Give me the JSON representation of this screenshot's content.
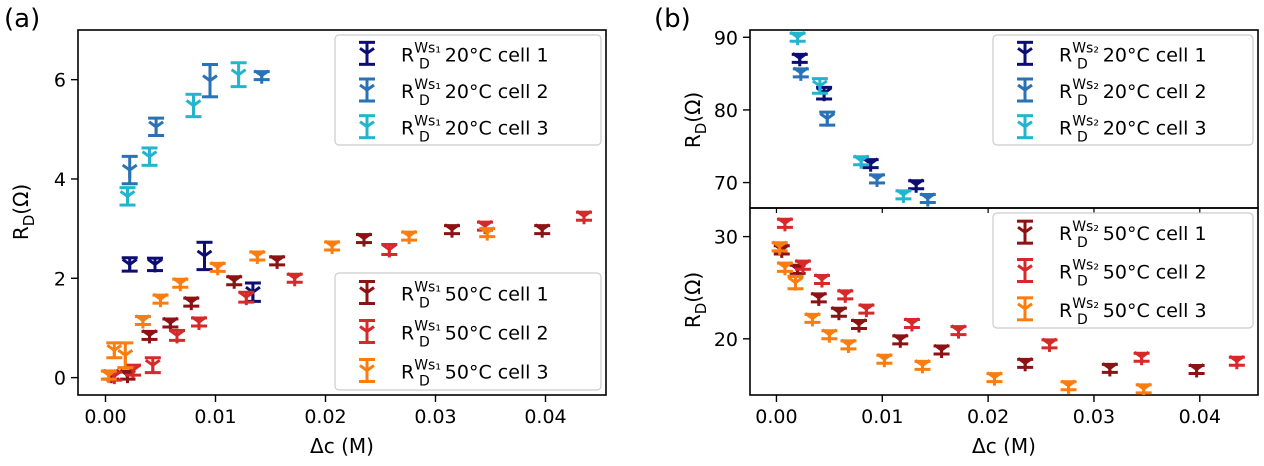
{
  "figure": {
    "panel_a_label": "(a)",
    "panel_b_label": "(b)"
  },
  "chart_data": [
    {
      "panel": "(a)",
      "type": "scatter",
      "xlabel": "Δc (M)",
      "ylabel_main": "R",
      "ylabel_sub": "D",
      "ylabel_rest": "(Ω)",
      "xlim": [
        -0.0025,
        0.0455
      ],
      "ylim": [
        -0.35,
        7.0
      ],
      "xticks": [
        0.0,
        0.01,
        0.02,
        0.03,
        0.04
      ],
      "xtick_labels": [
        "0.00",
        "0.01",
        "0.02",
        "0.03",
        "0.04"
      ],
      "yticks": [
        0,
        2,
        4,
        6
      ],
      "ytick_labels": [
        "0",
        "2",
        "4",
        "6"
      ],
      "grid": false,
      "legends": [
        {
          "placement": "upper-right",
          "entries": [
            0,
            1,
            2
          ]
        },
        {
          "placement": "lower-right",
          "entries": [
            3,
            4,
            5
          ]
        }
      ],
      "series": [
        {
          "name": "R_D^{Ws1} 20°C cell 1",
          "name_main": "R",
          "name_sub": "D",
          "name_sup": "Ws₁",
          "name_rest": "20°C cell 1",
          "color": "#0d0d73",
          "points": [
            [
              0.0022,
              2.28,
              0.27
            ],
            [
              0.0045,
              2.28,
              0.25
            ],
            [
              0.009,
              2.45,
              0.55
            ],
            [
              0.0134,
              1.72,
              0.37
            ]
          ]
        },
        {
          "name": "R_D^{Ws1} 20°C cell 2",
          "name_main": "R",
          "name_sub": "D",
          "name_sup": "Ws₁",
          "name_rest": "20°C cell 2",
          "color": "#2872b5",
          "points": [
            [
              0.0022,
              4.18,
              0.55
            ],
            [
              0.0046,
              5.05,
              0.35
            ],
            [
              0.0095,
              5.98,
              0.65
            ],
            [
              0.0142,
              6.08,
              0.1
            ]
          ]
        },
        {
          "name": "R_D^{Ws1} 20°C cell 3",
          "name_main": "R",
          "name_sub": "D",
          "name_sup": "Ws₁",
          "name_rest": "20°C cell 3",
          "color": "#22b5cd",
          "points": [
            [
              0.002,
              3.65,
              0.35
            ],
            [
              0.004,
              4.45,
              0.35
            ],
            [
              0.008,
              5.48,
              0.45
            ],
            [
              0.0121,
              6.1,
              0.48
            ]
          ]
        },
        {
          "name": "R_D^{Ws1} 50°C cell 1",
          "name_main": "R",
          "name_sub": "D",
          "name_sup": "Ws₁",
          "name_rest": "50°C cell 1",
          "color": "#8c1214",
          "points": [
            [
              0.0005,
              0.05,
              0.1
            ],
            [
              0.002,
              0.05,
              0.15
            ],
            [
              0.004,
              0.85,
              0.1
            ],
            [
              0.0059,
              1.1,
              0.1
            ],
            [
              0.0078,
              1.52,
              0.1
            ],
            [
              0.0117,
              1.95,
              0.1
            ],
            [
              0.0156,
              2.35,
              0.1
            ],
            [
              0.0235,
              2.8,
              0.15
            ],
            [
              0.0315,
              2.98,
              0.15
            ],
            [
              0.0397,
              2.98,
              0.15
            ]
          ]
        },
        {
          "name": "R_D^{Ws1} 50°C cell 2",
          "name_main": "R",
          "name_sub": "D",
          "name_sup": "Ws₁",
          "name_rest": "50°C cell 2",
          "color": "#d7282a",
          "points": [
            [
              0.0008,
              0.03,
              0.1
            ],
            [
              0.0025,
              0.15,
              0.2
            ],
            [
              0.0043,
              0.25,
              0.3
            ],
            [
              0.0065,
              0.85,
              0.2
            ],
            [
              0.0085,
              1.12,
              0.1
            ],
            [
              0.0128,
              1.62,
              0.2
            ],
            [
              0.0172,
              2.0,
              0.1
            ],
            [
              0.0258,
              2.58,
              0.2
            ],
            [
              0.0345,
              3.05,
              0.1
            ],
            [
              0.0435,
              3.25,
              0.15
            ]
          ]
        },
        {
          "name": "R_D^{Ws1} 50°C cell 3",
          "name_main": "R",
          "name_sub": "D",
          "name_sup": "Ws₁",
          "name_rest": "50°C cell 3",
          "color": "#fa7d0f",
          "points": [
            [
              0.0003,
              0.05,
              0.1
            ],
            [
              0.0008,
              0.55,
              0.3
            ],
            [
              0.0018,
              0.45,
              0.5
            ],
            [
              0.0034,
              1.15,
              0.1
            ],
            [
              0.005,
              1.58,
              0.15
            ],
            [
              0.0068,
              1.9,
              0.1
            ],
            [
              0.0102,
              2.22,
              0.1
            ],
            [
              0.0138,
              2.45,
              0.1
            ],
            [
              0.0206,
              2.65,
              0.1
            ],
            [
              0.0276,
              2.85,
              0.1
            ],
            [
              0.0347,
              2.92,
              0.15
            ]
          ]
        }
      ]
    },
    {
      "panel": "(b) upper",
      "type": "scatter",
      "xlabel": "",
      "ylabel_main": "R",
      "ylabel_sub": "D",
      "ylabel_rest": "(Ω)",
      "xlim": [
        -0.0025,
        0.0455
      ],
      "ylim": [
        66.5,
        91.0
      ],
      "yticks": [
        70,
        80,
        90
      ],
      "ytick_labels": [
        "70",
        "80",
        "90"
      ],
      "grid": false,
      "legends": [
        {
          "placement": "upper-right",
          "entries": [
            0,
            1,
            2
          ]
        }
      ],
      "series": [
        {
          "name": "R_D^{Ws2} 20°C cell 1",
          "name_main": "R",
          "name_sub": "D",
          "name_sup": "Ws₂",
          "name_rest": "20°C cell 1",
          "color": "#0d0d73",
          "points": [
            [
              0.0022,
              87.1,
              0.9
            ],
            [
              0.0045,
              82.3,
              1.6
            ],
            [
              0.0089,
              72.6,
              0.8
            ],
            [
              0.0132,
              69.7,
              0.6
            ]
          ]
        },
        {
          "name": "R_D^{Ws2} 20°C cell 2",
          "name_main": "R",
          "name_sub": "D",
          "name_sup": "Ws₂",
          "name_rest": "20°C cell 2",
          "color": "#2872b5",
          "points": [
            [
              0.0023,
              85.1,
              0.9
            ],
            [
              0.0048,
              78.8,
              1.8
            ],
            [
              0.0095,
              70.5,
              0.8
            ],
            [
              0.0143,
              67.8,
              0.6
            ]
          ]
        },
        {
          "name": "R_D^{Ws2} 20°C cell 3",
          "name_main": "R",
          "name_sub": "D",
          "name_sup": "Ws₂",
          "name_rest": "20°C cell 3",
          "color": "#22b5cd",
          "points": [
            [
              0.002,
              90.0,
              0.8
            ],
            [
              0.0041,
              83.3,
              2.0
            ],
            [
              0.008,
              73.0,
              0.6
            ],
            [
              0.012,
              68.3,
              0.7
            ]
          ]
        }
      ]
    },
    {
      "panel": "(b) lower",
      "type": "scatter",
      "xlabel": "Δc (M)",
      "ylabel_main": "R",
      "ylabel_sub": "D",
      "ylabel_rest": "(Ω)",
      "xlim": [
        -0.0025,
        0.0455
      ],
      "ylim": [
        14.5,
        32.8
      ],
      "xticks": [
        0.0,
        0.01,
        0.02,
        0.03,
        0.04
      ],
      "xtick_labels": [
        "0.00",
        "0.01",
        "0.02",
        "0.03",
        "0.04"
      ],
      "yticks": [
        20,
        30
      ],
      "ytick_labels": [
        "20",
        "30"
      ],
      "grid": false,
      "legends": [
        {
          "placement": "upper-right",
          "entries": [
            0,
            1,
            2
          ]
        }
      ],
      "series": [
        {
          "name": "R_D^{Ws2} 50°C cell 1",
          "name_main": "R",
          "name_sub": "D",
          "name_sup": "Ws₂",
          "name_rest": "50°C cell 1",
          "color": "#8c1214",
          "points": [
            [
              0.0005,
              28.7,
              0.8
            ],
            [
              0.002,
              26.8,
              0.8
            ],
            [
              0.004,
              24.0,
              0.7
            ],
            [
              0.0059,
              22.6,
              0.7
            ],
            [
              0.0078,
              21.4,
              0.7
            ],
            [
              0.0117,
              19.9,
              0.7
            ],
            [
              0.0156,
              18.9,
              0.7
            ],
            [
              0.0235,
              17.6,
              0.7
            ],
            [
              0.0315,
              17.1,
              0.7
            ],
            [
              0.0397,
              17.0,
              0.7
            ]
          ]
        },
        {
          "name": "R_D^{Ws2} 50°C cell 2",
          "name_main": "R",
          "name_sub": "D",
          "name_sup": "Ws₂",
          "name_rest": "50°C cell 2",
          "color": "#d7282a",
          "points": [
            [
              0.0008,
              31.3,
              0.8
            ],
            [
              0.0025,
              27.2,
              0.8
            ],
            [
              0.0043,
              25.8,
              0.7
            ],
            [
              0.0065,
              24.3,
              0.7
            ],
            [
              0.0085,
              22.9,
              0.7
            ],
            [
              0.0128,
              21.5,
              0.7
            ],
            [
              0.0172,
              20.8,
              0.7
            ],
            [
              0.0258,
              19.5,
              0.7
            ],
            [
              0.0345,
              18.2,
              0.7
            ],
            [
              0.0435,
              17.8,
              0.7
            ]
          ]
        },
        {
          "name": "R_D^{Ws2} 50°C cell 3",
          "name_main": "R",
          "name_sub": "D",
          "name_sup": "Ws₂",
          "name_rest": "50°C cell 3",
          "color": "#fa7d0f",
          "points": [
            [
              0.0003,
              29.0,
              0.8
            ],
            [
              0.0008,
              27.0,
              0.8
            ],
            [
              0.0018,
              25.5,
              1.2
            ],
            [
              0.0034,
              22.0,
              0.7
            ],
            [
              0.005,
              20.4,
              0.7
            ],
            [
              0.0068,
              19.4,
              0.7
            ],
            [
              0.0102,
              18.0,
              0.7
            ],
            [
              0.0138,
              17.4,
              0.7
            ],
            [
              0.0206,
              16.2,
              0.7
            ],
            [
              0.0276,
              15.4,
              0.7
            ],
            [
              0.0347,
              15.1,
              0.7
            ]
          ]
        }
      ]
    }
  ]
}
